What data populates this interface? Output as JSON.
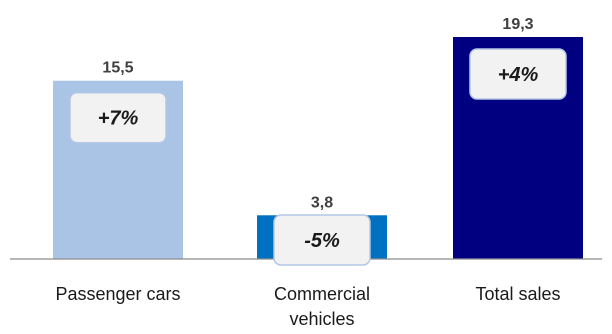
{
  "chart_data": {
    "type": "bar",
    "categories": [
      "Passenger cars",
      "Commercial vehicles",
      "Total sales"
    ],
    "category_label_lines": [
      [
        "Passenger cars"
      ],
      [
        "Commercial",
        "vehicles"
      ],
      [
        "Total sales"
      ]
    ],
    "values": [
      15.5,
      3.8,
      19.3
    ],
    "value_labels": [
      "15,5",
      "3,8",
      "19,3"
    ],
    "change_labels": [
      "+7%",
      "-5%",
      "+4%"
    ],
    "colors": [
      "#a9c4e4",
      "#0070c0",
      "#000080"
    ],
    "badge_fill": "#f2f2f2",
    "badge_border": "#b4c7e7",
    "axis_color": "#8c8c8c",
    "ylim": [
      0,
      19.3
    ],
    "grid": false,
    "title": "",
    "xlabel": "",
    "ylabel": ""
  }
}
